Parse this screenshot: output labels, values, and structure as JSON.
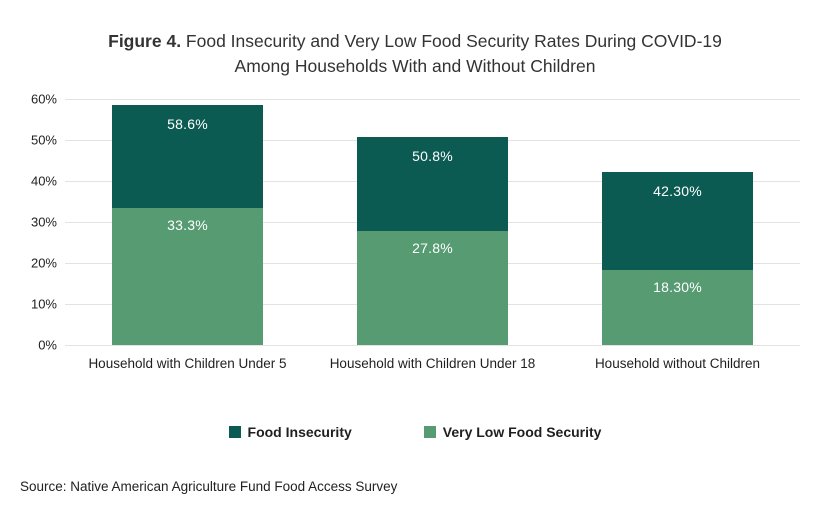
{
  "title": {
    "figure_label": "Figure 4.",
    "line1_rest": " Food Insecurity and Very Low Food Security Rates During COVID-19",
    "line2": "Among Households With and Without Children"
  },
  "source": "Source: Native American Agriculture Fund Food Access Survey",
  "colors": {
    "food_insecurity": "#0b5b52",
    "very_low_food_security": "#569b72",
    "gridline": "#e3e3e3",
    "bar_label_text": "#ffffff",
    "title_text": "#333333"
  },
  "chart_data": {
    "type": "bar",
    "subtype": "overlay",
    "title": "Figure 4. Food Insecurity and Very Low Food Security Rates During COVID-19 Among Households With and Without Children",
    "categories": [
      "Household with Children Under 5",
      "Household with Children Under 18",
      "Household without Children"
    ],
    "series": [
      {
        "name": "Food Insecurity",
        "color": "#0b5b52",
        "values": [
          58.6,
          50.8,
          42.3
        ],
        "labels": [
          "58.6%",
          "50.8%",
          "42.30%"
        ]
      },
      {
        "name": "Very Low Food Security",
        "color": "#569b72",
        "values": [
          33.3,
          27.8,
          18.3
        ],
        "labels": [
          "33.3%",
          "27.8%",
          "18.30%"
        ]
      }
    ],
    "xlabel": "",
    "ylabel": "",
    "ylim": [
      0,
      60
    ],
    "ytick_step": 10,
    "ytick_suffix": "%",
    "grid": true,
    "legend_position": "bottom"
  },
  "legend": [
    {
      "label": "Food Insecurity",
      "color": "#0b5b52"
    },
    {
      "label": "Very Low Food Security",
      "color": "#569b72"
    }
  ]
}
